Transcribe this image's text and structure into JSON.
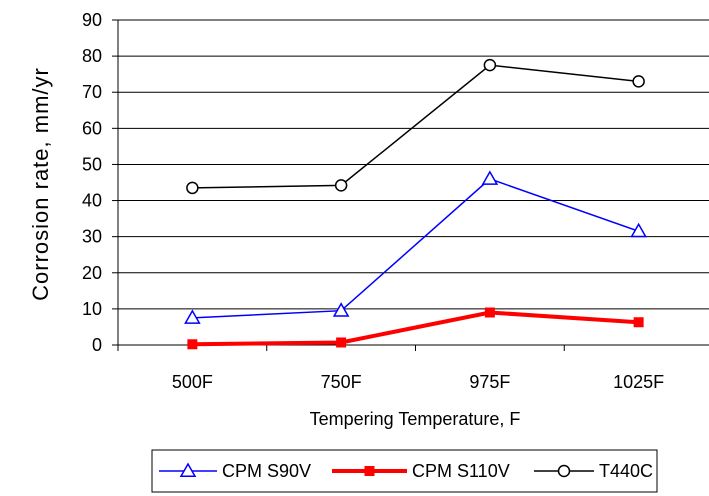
{
  "chart_data": {
    "type": "line",
    "title": "",
    "xlabel": "Tempering Temperature, F",
    "ylabel": "Corrosion rate,  mm/yr",
    "categories": [
      "500F",
      "750F",
      "975F",
      "1025F"
    ],
    "ylim": [
      0,
      90
    ],
    "yticks": [
      0,
      10,
      20,
      30,
      40,
      50,
      60,
      70,
      80,
      90
    ],
    "grid": true,
    "legend_position": "bottom",
    "series": [
      {
        "name": "CPM S90V",
        "values": [
          7.5,
          9.5,
          46,
          31.5
        ],
        "color": "#0000ff",
        "marker": "triangle"
      },
      {
        "name": "CPM S110V",
        "values": [
          0.2,
          0.7,
          9,
          6.3
        ],
        "color": "#ff0000",
        "marker": "square"
      },
      {
        "name": "T440C",
        "values": [
          43.5,
          44.2,
          77.5,
          73
        ],
        "color": "#000000",
        "marker": "circle"
      }
    ]
  }
}
